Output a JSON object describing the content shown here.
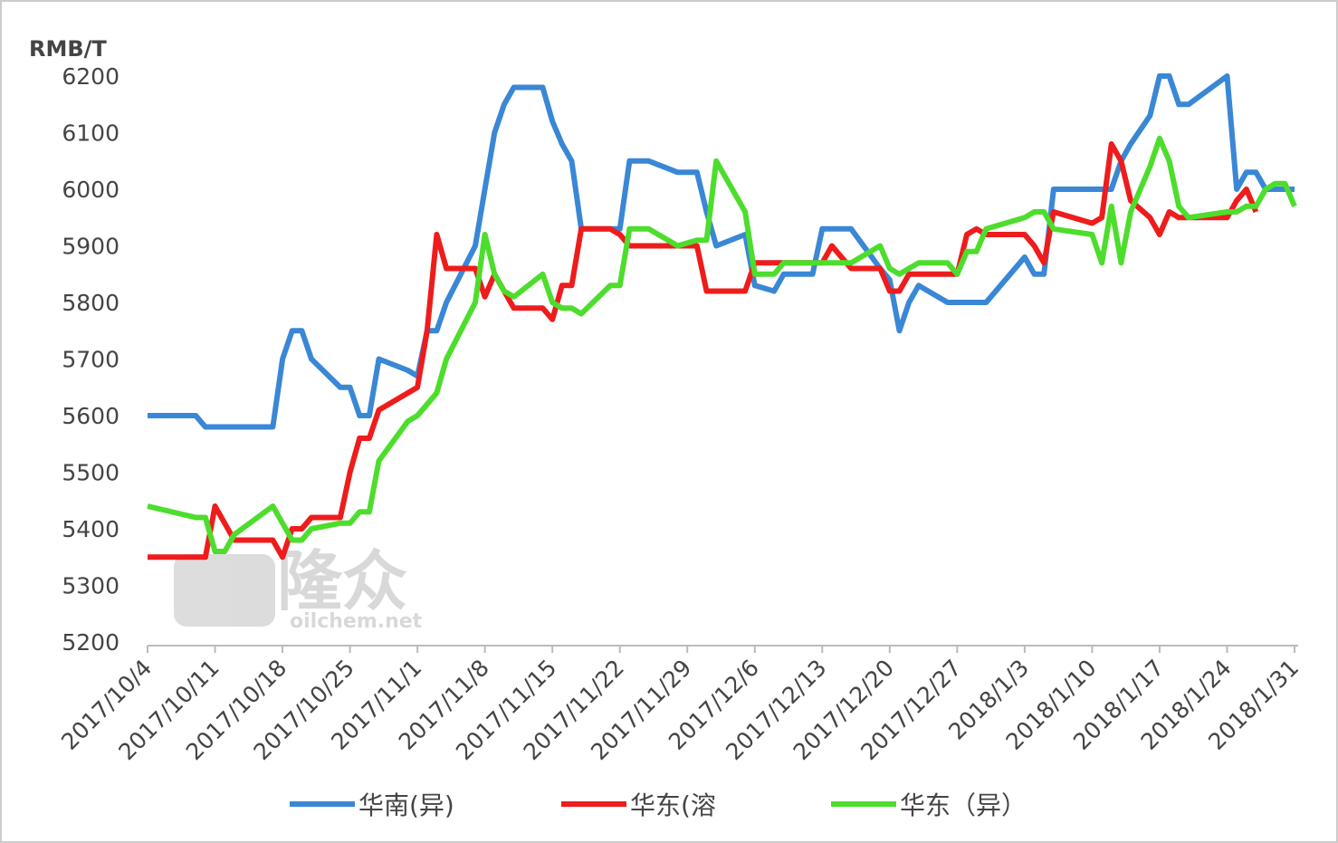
{
  "chart_data": {
    "type": "line",
    "y_axis_label": "RMB/T",
    "watermark": [
      "隆众",
      "oilchem.net"
    ],
    "x": [
      "2017/10/4",
      "2017/10/9",
      "2017/10/10",
      "2017/10/11",
      "2017/10/12",
      "2017/10/13",
      "2017/10/17",
      "2017/10/18",
      "2017/10/19",
      "2017/10/20",
      "2017/10/21",
      "2017/10/24",
      "2017/10/25",
      "2017/10/26",
      "2017/10/27",
      "2017/10/28",
      "2017/10/31",
      "2017/11/1",
      "2017/11/2",
      "2017/11/3",
      "2017/11/4",
      "2017/11/7",
      "2017/11/8",
      "2017/11/9",
      "2017/11/10",
      "2017/11/11",
      "2017/11/14",
      "2017/11/15",
      "2017/11/16",
      "2017/11/17",
      "2017/11/18",
      "2017/11/21",
      "2017/11/22",
      "2017/11/23",
      "2017/11/25",
      "2017/11/28",
      "2017/11/30",
      "2017/12/1",
      "2017/12/2",
      "2017/12/5",
      "2017/12/6",
      "2017/12/8",
      "2017/12/9",
      "2017/12/12",
      "2017/12/13",
      "2017/12/14",
      "2017/12/16",
      "2017/12/19",
      "2017/12/20",
      "2017/12/21",
      "2017/12/22",
      "2017/12/23",
      "2017/12/26",
      "2017/12/27",
      "2017/12/28",
      "2017/12/29",
      "2017/12/30",
      "2018/1/3",
      "2018/1/4",
      "2018/1/5",
      "2018/1/6",
      "2018/1/10",
      "2018/1/11",
      "2018/1/12",
      "2018/1/13",
      "2018/1/14",
      "2018/1/16",
      "2018/1/17",
      "2018/1/18",
      "2018/1/19",
      "2018/1/20",
      "2018/1/24",
      "2018/1/25",
      "2018/1/26",
      "2018/1/27",
      "2018/1/28",
      "2018/1/29",
      "2018/1/30",
      "2018/1/31"
    ],
    "series": [
      {
        "name": "华南(异)",
        "color": "#3a87d6",
        "values": [
          5600,
          5600,
          5580,
          5580,
          5580,
          5580,
          5580,
          5700,
          5750,
          5750,
          5700,
          5650,
          5650,
          5600,
          5600,
          5700,
          5680,
          5670,
          5750,
          5750,
          5800,
          5900,
          6000,
          6100,
          6150,
          6180,
          6180,
          6120,
          6080,
          6050,
          5930,
          5930,
          5930,
          6050,
          6050,
          6030,
          6030,
          5960,
          5900,
          5920,
          5830,
          5820,
          5850,
          5850,
          5930,
          5930,
          5930,
          5860,
          5840,
          5750,
          5800,
          5830,
          5800,
          5800,
          5800,
          5800,
          5800,
          5880,
          5850,
          5850,
          6000,
          6000,
          6000,
          6000,
          6050,
          6080,
          6130,
          6200,
          6200,
          6150,
          6150,
          6200,
          6000,
          6030,
          6030,
          6000,
          6000,
          6000,
          6000
        ]
      },
      {
        "name": "华东(溶",
        "color": "#ee1c1c",
        "values": [
          5350,
          5350,
          5350,
          5440,
          5410,
          5380,
          5380,
          5350,
          5400,
          5400,
          5420,
          5420,
          5500,
          5560,
          5560,
          5610,
          5640,
          5650,
          5750,
          5920,
          5860,
          5860,
          5810,
          5850,
          5820,
          5790,
          5790,
          5770,
          5830,
          5830,
          5930,
          5930,
          5920,
          5900,
          5900,
          5900,
          5900,
          5820,
          5820,
          5820,
          5870,
          5870,
          5870,
          5870,
          5870,
          5900,
          5860,
          5860,
          5820,
          5820,
          5850,
          5850,
          5850,
          5850,
          5920,
          5930,
          5920,
          5920,
          5900,
          5870,
          5960,
          5940,
          5950,
          6080,
          6050,
          5980,
          5950,
          5920,
          5960,
          5950,
          5950,
          5950,
          5980,
          6000,
          5960,
          null,
          null,
          null,
          null
        ]
      },
      {
        "name": "华东（异）",
        "color": "#4ddd2c",
        "values": [
          5440,
          5420,
          5420,
          5360,
          5360,
          5390,
          5440,
          5410,
          5380,
          5380,
          5400,
          5410,
          5410,
          5430,
          5430,
          5520,
          5590,
          5600,
          5620,
          5640,
          5700,
          5800,
          5920,
          5850,
          5820,
          5810,
          5850,
          5800,
          5790,
          5790,
          5780,
          5830,
          5830,
          5930,
          5930,
          5900,
          5910,
          5910,
          6050,
          5960,
          5850,
          5850,
          5870,
          5870,
          5870,
          5870,
          5870,
          5900,
          5860,
          5850,
          5860,
          5870,
          5870,
          5850,
          5890,
          5890,
          5930,
          5950,
          5960,
          5960,
          5930,
          5920,
          5870,
          5970,
          5870,
          5960,
          6040,
          6090,
          6050,
          5970,
          5950,
          5960,
          5960,
          5970,
          5970,
          6000,
          6010,
          6010,
          5970
        ]
      }
    ],
    "xlim": [
      "2017/10/4",
      "2018/1/31"
    ],
    "xticks": [
      "2017/10/4",
      "2017/10/11",
      "2017/10/18",
      "2017/10/25",
      "2017/11/1",
      "2017/11/8",
      "2017/11/15",
      "2017/11/22",
      "2017/11/29",
      "2017/12/6",
      "2017/12/13",
      "2017/12/20",
      "2017/12/27",
      "2018/1/3",
      "2018/1/10",
      "2018/1/17",
      "2018/1/24",
      "2018/1/31"
    ],
    "ylim": [
      5200,
      6200
    ],
    "yticks": [
      5200,
      5300,
      5400,
      5500,
      5600,
      5700,
      5800,
      5900,
      6000,
      6100,
      6200
    ],
    "grid": false
  }
}
